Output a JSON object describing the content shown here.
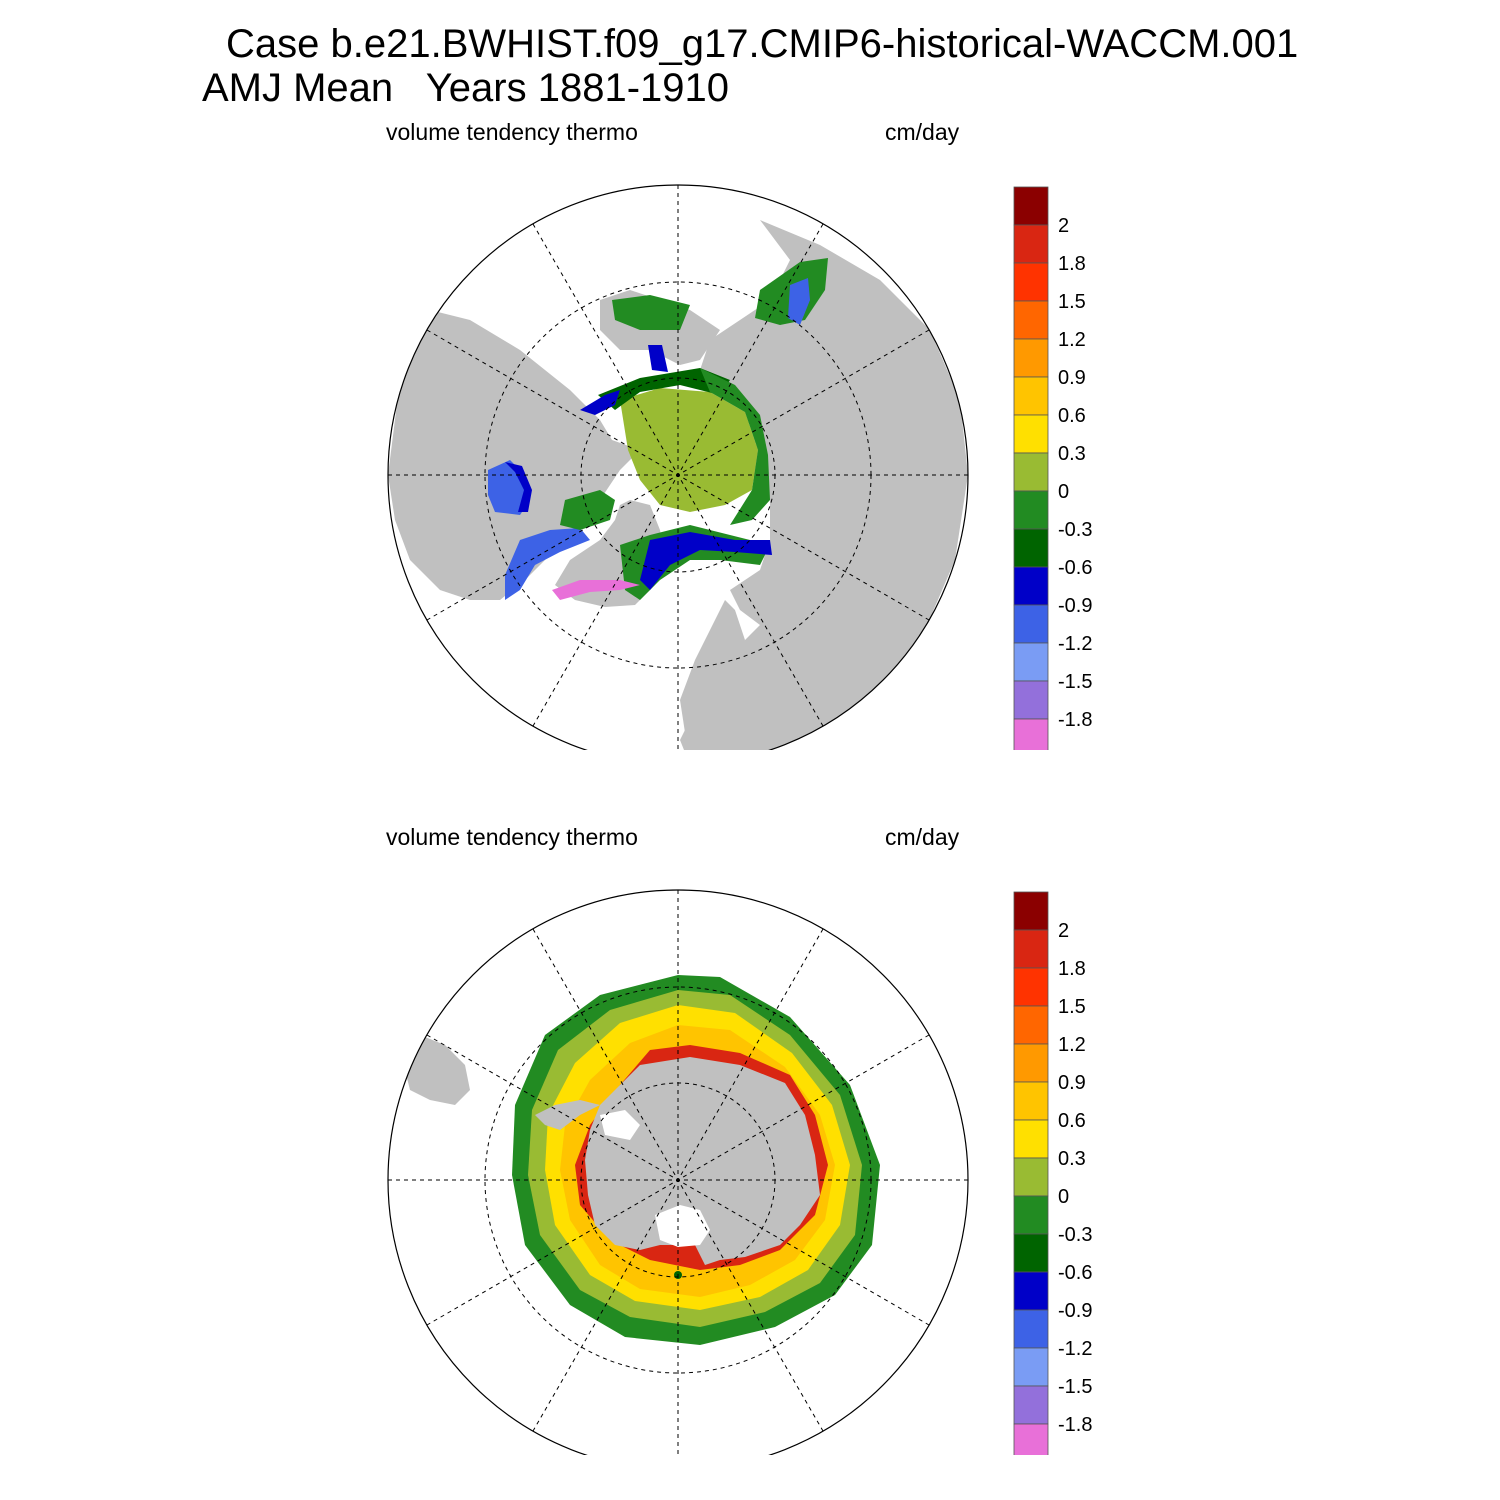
{
  "title": {
    "line1": "Case b.e21.BWHIST.f09_g17.CMIP6-historical-WACCM.001",
    "line2": "AMJ Mean   Years 1881-1910"
  },
  "panels": [
    {
      "id": "arctic",
      "left_label": "volume tendency thermo",
      "right_label": "cm/day"
    },
    {
      "id": "antarctic",
      "left_label": "volume tendency thermo",
      "right_label": "cm/day"
    }
  ],
  "colorbar": {
    "labels": [
      "2",
      "1.8",
      "1.5",
      "1.2",
      "0.9",
      "0.6",
      "0.3",
      "0",
      "-0.3",
      "-0.6",
      "-0.9",
      "-1.2",
      "-1.5",
      "-1.8"
    ],
    "colors": [
      "#8b0000",
      "#d92612",
      "#ff3300",
      "#ff6600",
      "#ff9900",
      "#ffc400",
      "#ffe000",
      "#99bb33",
      "#228b22",
      "#006400",
      "#0000c8",
      "#3d62e6",
      "#7a9cf4",
      "#9370db",
      "#e870d8"
    ]
  },
  "map_colors": {
    "land": "#c0c0c0",
    "ocean": "#ffffff"
  }
}
